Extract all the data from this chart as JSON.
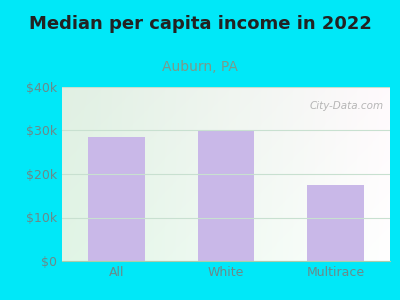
{
  "title": "Median per capita income in 2022",
  "subtitle": "Auburn, PA",
  "categories": [
    "All",
    "White",
    "Multirace"
  ],
  "values": [
    28500,
    30000,
    17500
  ],
  "bar_color": "#c9b8e8",
  "title_fontsize": 13,
  "subtitle_fontsize": 10,
  "subtitle_color": "#7a9a8a",
  "tick_color": "#6a8a8a",
  "ylim": [
    0,
    40000
  ],
  "yticks": [
    0,
    10000,
    20000,
    30000,
    40000
  ],
  "ytick_labels": [
    "$0",
    "$10k",
    "$20k",
    "$30k",
    "$40k"
  ],
  "background_outer": "#00e8f8",
  "watermark": "City-Data.com",
  "grid_color": "#c8e0d0",
  "spine_color": "#aaccaa"
}
